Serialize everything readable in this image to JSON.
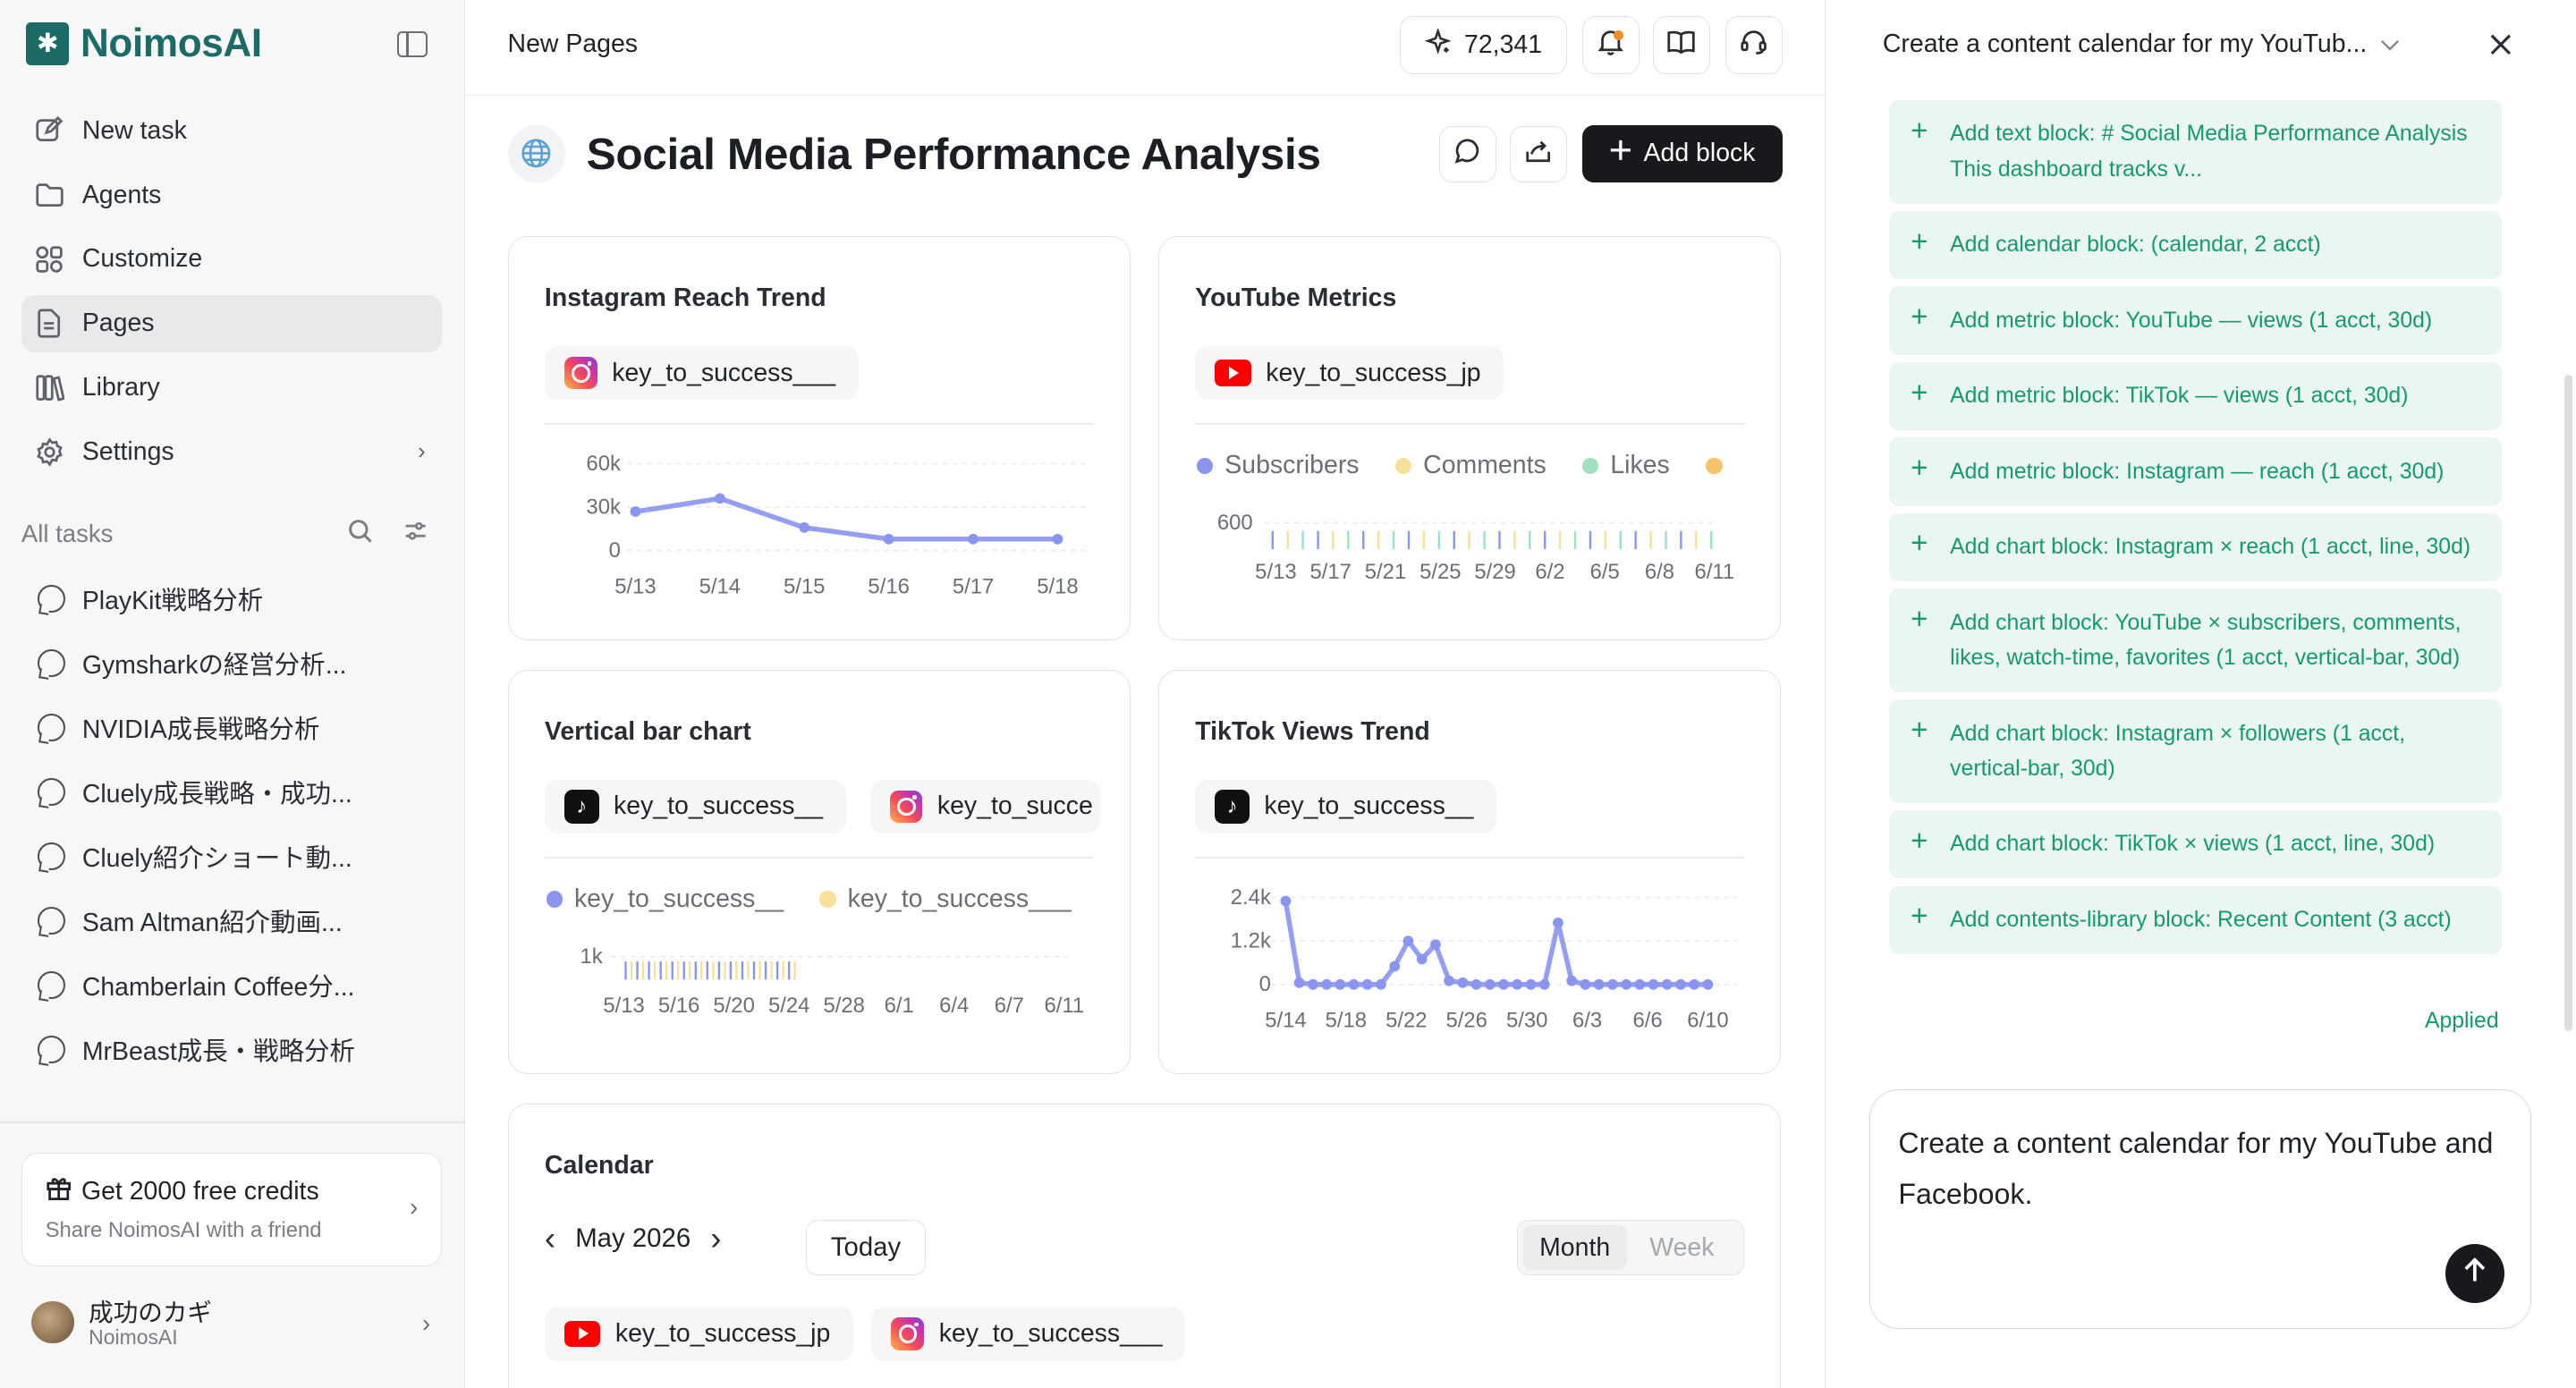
{
  "brand": {
    "name": "NoimosAI"
  },
  "sidebar": {
    "nav": [
      {
        "label": "New task",
        "icon": "edit-icon"
      },
      {
        "label": "Agents",
        "icon": "folder-icon"
      },
      {
        "label": "Customize",
        "icon": "grid-icon"
      },
      {
        "label": "Pages",
        "icon": "page-icon",
        "active": true
      },
      {
        "label": "Library",
        "icon": "library-icon"
      },
      {
        "label": "Settings",
        "icon": "gear-icon"
      }
    ],
    "tasks_label": "All tasks",
    "tasks": [
      "PlayKit戦略分析",
      "Gymsharkの経営分析...",
      "NVIDIA成長戦略分析",
      "Cluely成長戦略・成功...",
      "Cluely紹介ショート動...",
      "Sam Altman紹介動画...",
      "Chamberlain Coffee分...",
      "MrBeast成長・戦略分析"
    ],
    "credits": {
      "title": "Get 2000 free credits",
      "subtitle": "Share NoimosAI with a friend"
    },
    "user": {
      "name": "成功のカギ",
      "org": "NoimosAI"
    }
  },
  "topbar": {
    "breadcrumb": "New Pages",
    "credits": "72,341"
  },
  "page": {
    "title": "Social Media Performance Analysis",
    "add_block_label": "Add block"
  },
  "cards": {
    "instagram_reach": {
      "title": "Instagram Reach Trend",
      "account": "key_to_success___"
    },
    "youtube_metrics": {
      "title": "YouTube Metrics",
      "account": "key_to_success_jp",
      "legend": [
        "Subscribers",
        "Comments",
        "Likes"
      ]
    },
    "vertical_bar": {
      "title": "Vertical bar chart",
      "accounts": [
        "key_to_success__",
        "key_to_succe"
      ],
      "legend": [
        "key_to_success__",
        "key_to_success___"
      ]
    },
    "tiktok_views": {
      "title": "TikTok Views Trend",
      "account": "key_to_success__"
    },
    "calendar": {
      "title": "Calendar",
      "month": "May 2026",
      "today_label": "Today",
      "views": [
        "Month",
        "Week"
      ],
      "accounts": [
        "key_to_success_jp",
        "key_to_success___"
      ]
    }
  },
  "chart_data": [
    {
      "type": "line",
      "title": "Instagram Reach Trend",
      "x": [
        "5/13",
        "5/14",
        "5/15",
        "5/16",
        "5/17",
        "5/18"
      ],
      "series": [
        {
          "values": [
            27000,
            36000,
            16000,
            8000,
            8000,
            8000
          ]
        }
      ],
      "yticks": [
        "60k",
        "30k",
        "0"
      ],
      "ylim": [
        0,
        60000
      ],
      "color": "#8b94ef"
    },
    {
      "type": "bar",
      "title": "YouTube Metrics",
      "x_ticks": [
        "5/13",
        "5/17",
        "5/21",
        "5/25",
        "5/29",
        "6/2",
        "6/5",
        "6/8",
        "6/11"
      ],
      "yticks": [
        "600"
      ],
      "series": [
        {
          "name": "Subscribers",
          "color": "#8b94ef"
        },
        {
          "name": "Comments",
          "color": "#f7e19a"
        },
        {
          "name": "Likes",
          "color": "#9fe0bf"
        }
      ],
      "bar_count": 30
    },
    {
      "type": "bar",
      "title": "Vertical bar chart",
      "x_ticks": [
        "5/13",
        "5/16",
        "5/20",
        "5/24",
        "5/28",
        "6/1",
        "6/4",
        "6/7",
        "6/11"
      ],
      "yticks": [
        "1k"
      ],
      "series": [
        {
          "name": "key_to_success__",
          "color": "#8b94ef"
        },
        {
          "name": "key_to_success___",
          "color": "#f7e19a"
        }
      ],
      "bar_count": 30
    },
    {
      "type": "line",
      "title": "TikTok Views Trend",
      "x_ticks": [
        "5/14",
        "5/18",
        "5/22",
        "5/26",
        "5/30",
        "6/3",
        "6/6",
        "6/10"
      ],
      "yticks": [
        "2.4k",
        "1.2k",
        "0"
      ],
      "ylim": [
        0,
        2400
      ],
      "series": [
        {
          "values": [
            2300,
            50,
            0,
            0,
            0,
            0,
            0,
            0,
            500,
            1200,
            700,
            1100,
            100,
            50,
            0,
            0,
            0,
            0,
            0,
            0,
            1700,
            100,
            0,
            0,
            0,
            0,
            0,
            0,
            0,
            0,
            0,
            0
          ]
        }
      ],
      "color": "#8b94ef"
    }
  ],
  "right_panel": {
    "header": "Create a content calendar for my YouTub...",
    "actions": [
      "Add text block: # Social Media Performance Analysis This dashboard tracks v...",
      "Add calendar block: (calendar, 2 acct)",
      "Add metric block: YouTube — views (1 acct, 30d)",
      "Add metric block: TikTok — views (1 acct, 30d)",
      "Add metric block: Instagram — reach (1 acct, 30d)",
      "Add chart block: Instagram × reach (1 acct, line, 30d)",
      "Add chart block: YouTube × subscribers, comments, likes, watch-time, favorites (1 acct, vertical-bar, 30d)",
      "Add chart block: Instagram × followers (1 acct, vertical-bar, 30d)",
      "Add chart block: TikTok × views (1 acct, line, 30d)",
      "Add contents-library block: Recent Content (3 acct)"
    ],
    "status": "Applied",
    "composer_text": "Create a content calendar for my YouTube and Facebook."
  },
  "colors": {
    "brand": "#1d6b67",
    "accent_line": "#8b94ef",
    "applied_green": "#159a6a",
    "action_bg": "#eaf7f1"
  }
}
